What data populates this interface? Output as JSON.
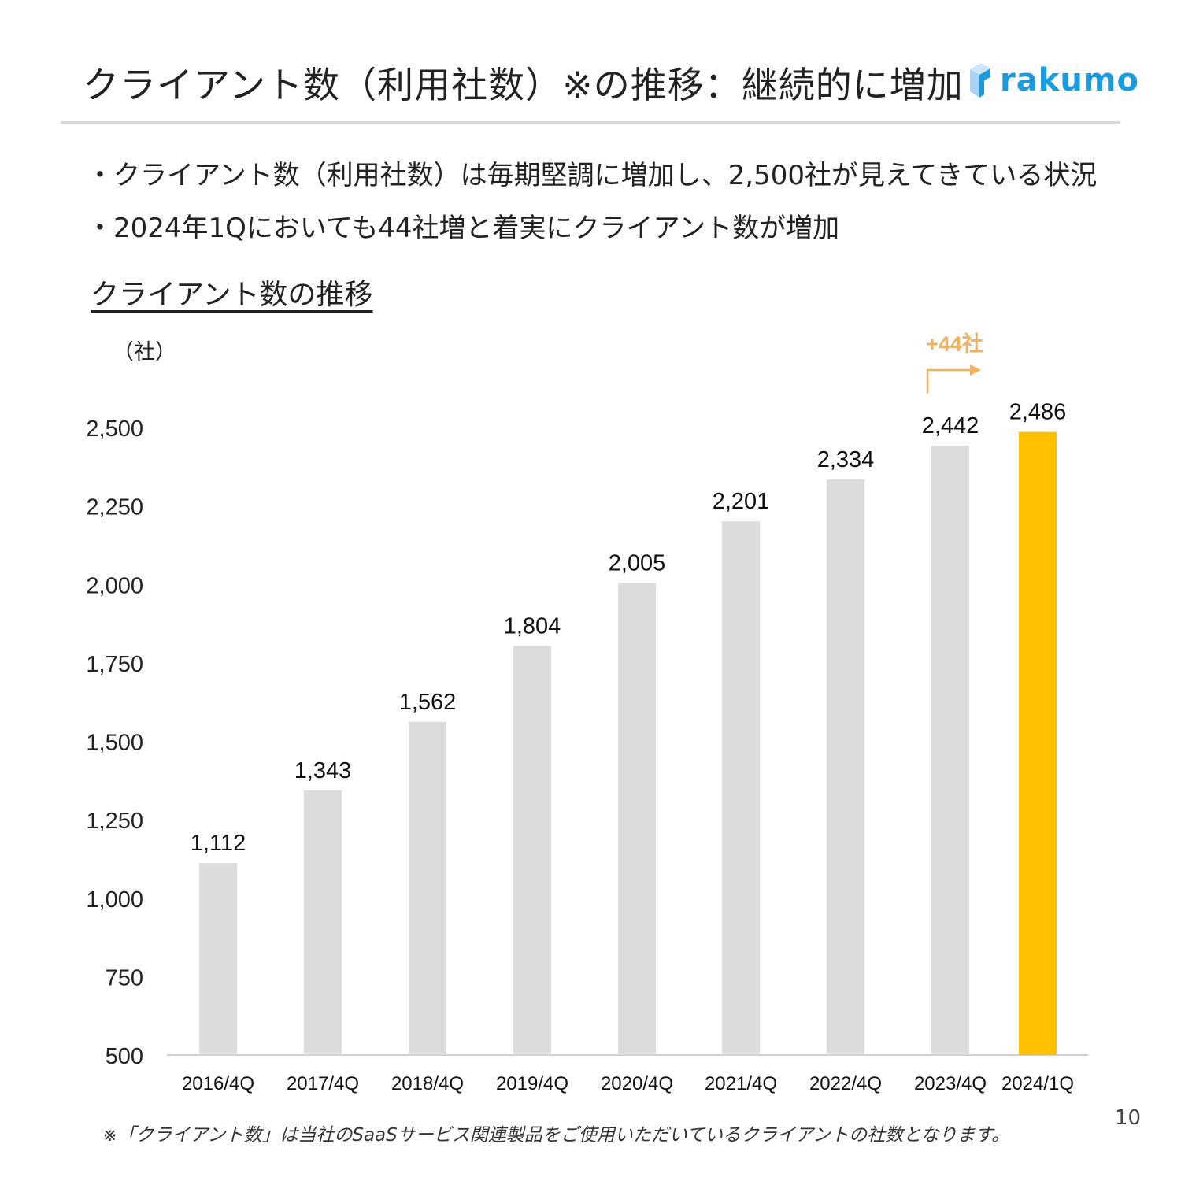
{
  "header": {
    "title": "クライアント数（利用社数）※の推移：継続的に増加",
    "logo_text": "rakumo"
  },
  "bullets": [
    "・クライアント数（利用社数）は毎期堅調に増加し、2,500社が見えてきている状況",
    "・2024年1Qにおいても44社増と着実にクライアント数が増加"
  ],
  "chart_title": "クライアント数の推移",
  "footnote": "※「クライアント数」は当社のSaaSサービス関連製品をご使用いただいているクライアントの社数となります。",
  "page_number": "10",
  "chart_data": {
    "type": "bar",
    "title": "クライアント数の推移",
    "ylabel": "（社）",
    "xlabel": "",
    "categories": [
      "2016/4Q",
      "2017/4Q",
      "2018/4Q",
      "2019/4Q",
      "2020/4Q",
      "2021/4Q",
      "2022/4Q",
      "2023/4Q",
      "2024/1Q"
    ],
    "values": [
      1112,
      1343,
      1562,
      1804,
      2005,
      2201,
      2334,
      2442,
      2486
    ],
    "value_labels": [
      "1,112",
      "1,343",
      "1,562",
      "1,804",
      "2,005",
      "2,201",
      "2,334",
      "2,442",
      "2,486"
    ],
    "ylim": [
      500,
      2500
    ],
    "yticks": [
      500,
      750,
      1000,
      1250,
      1500,
      1750,
      2000,
      2250,
      2500
    ],
    "ytick_labels": [
      "500",
      "750",
      "1,000",
      "1,250",
      "1,500",
      "1,750",
      "2,000",
      "2,250",
      "2,500"
    ],
    "grid": false,
    "colors": {
      "default": "#dcdcdc",
      "highlight": "#ffc000",
      "annotation": "#f0b260"
    },
    "highlight_index": 8,
    "annotation": "+44社"
  }
}
